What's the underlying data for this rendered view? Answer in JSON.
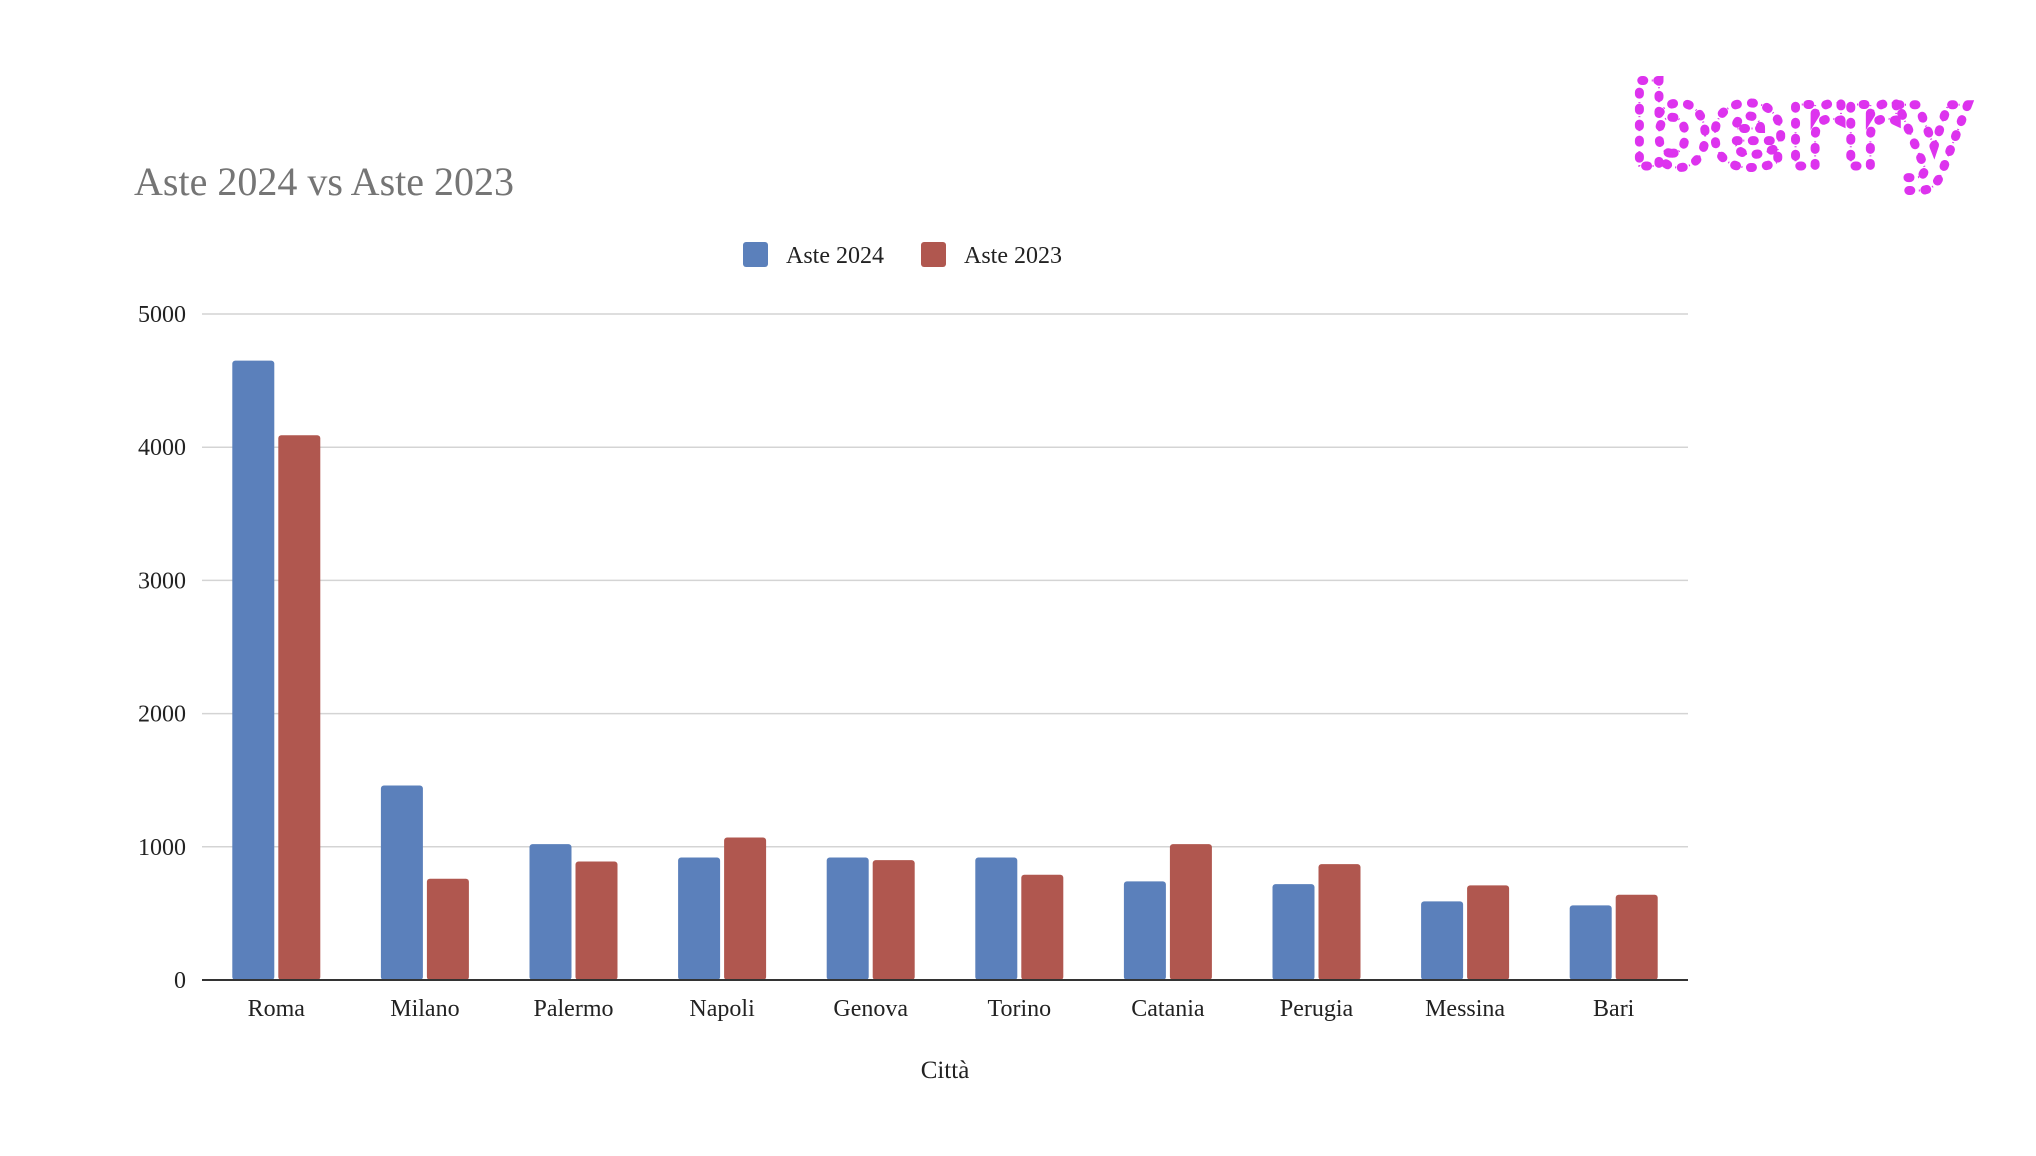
{
  "logo": {
    "text": "berry",
    "color": "#dd33ee"
  },
  "chart_data": {
    "type": "bar",
    "title": "Aste 2024 vs Aste 2023",
    "xlabel": "Città",
    "ylabel": "",
    "ylim": [
      0,
      5000
    ],
    "yticks": [
      "0",
      "1000",
      "2000",
      "3000",
      "4000",
      "5000"
    ],
    "grid": true,
    "legend_position": "top-center",
    "categories": [
      "Roma",
      "Milano",
      "Palermo",
      "Napoli",
      "Genova",
      "Torino",
      "Catania",
      "Perugia",
      "Messina",
      "Bari"
    ],
    "series": [
      {
        "name": "Aste 2024",
        "color": "#5b80bb",
        "values": [
          4650,
          1460,
          1020,
          920,
          920,
          920,
          740,
          720,
          590,
          560
        ]
      },
      {
        "name": "Aste 2023",
        "color": "#b0574f",
        "values": [
          4090,
          760,
          890,
          1070,
          900,
          790,
          1020,
          870,
          710,
          640
        ]
      }
    ]
  }
}
